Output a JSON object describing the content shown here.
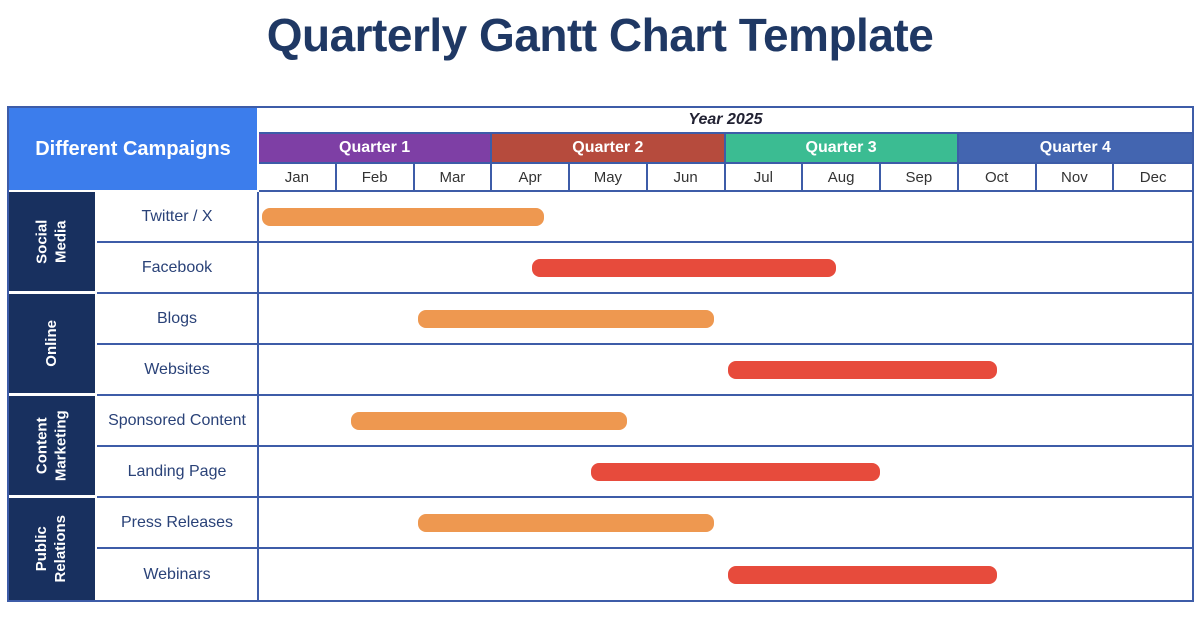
{
  "title": "Quarterly Gantt Chart Template",
  "table": {
    "campaigns_header": "Different Campaigns",
    "year_label": "Year 2025",
    "quarters": [
      {
        "label": "Quarter 1",
        "color": "#7e3fa5"
      },
      {
        "label": "Quarter 2",
        "color": "#b64b3d"
      },
      {
        "label": "Quarter 3",
        "color": "#3bbc92"
      },
      {
        "label": "Quarter 4",
        "color": "#4365b0"
      }
    ],
    "months": [
      "Jan",
      "Feb",
      "Mar",
      "Apr",
      "May",
      "Jun",
      "Jul",
      "Aug",
      "Sep",
      "Oct",
      "Nov",
      "Dec"
    ],
    "groups": [
      {
        "label": "Social Media",
        "vertical_text": "Social\nMedia"
      },
      {
        "label": "Online",
        "vertical_text": "Online"
      },
      {
        "label": "Content Marketing",
        "vertical_text": "Content\nMarketing"
      },
      {
        "label": "Public Relations",
        "vertical_text": "Public\nRelations"
      }
    ],
    "rows": [
      {
        "label": "Twitter / X",
        "group": "Social Media",
        "bar": {
          "start": 0.04,
          "end": 3.67,
          "color": "#ee9850"
        }
      },
      {
        "label": "Facebook",
        "group": "Social Media",
        "bar": {
          "start": 3.51,
          "end": 7.42,
          "color": "#e74b3c"
        }
      },
      {
        "label": "Blogs",
        "group": "Online",
        "bar": {
          "start": 2.04,
          "end": 5.85,
          "color": "#ee9850"
        }
      },
      {
        "label": "Websites",
        "group": "Online",
        "bar": {
          "start": 6.03,
          "end": 9.49,
          "color": "#e74b3c"
        }
      },
      {
        "label": "Sponsored Content",
        "group": "Content Marketing",
        "bar": {
          "start": 1.18,
          "end": 4.73,
          "color": "#ee9850"
        }
      },
      {
        "label": "Landing Page",
        "group": "Content Marketing",
        "bar": {
          "start": 4.27,
          "end": 7.99,
          "color": "#e74b3c"
        }
      },
      {
        "label": "Press Releases",
        "group": "Public Relations",
        "bar": {
          "start": 2.04,
          "end": 5.85,
          "color": "#ee9850"
        }
      },
      {
        "label": "Webinars",
        "group": "Public Relations",
        "bar": {
          "start": 6.03,
          "end": 9.49,
          "color": "#e74b3c"
        }
      }
    ]
  },
  "colors": {
    "title_navy": "#1f3864",
    "grid_line": "#3d5ca8",
    "sidebar_navy": "#18305f",
    "campaign_header_blue": "#3c7dec",
    "row_label_navy": "#2a4278",
    "month_text": "#333333",
    "year_text": "#222233",
    "bar_orange": "#ee9850",
    "bar_red": "#e74b3c"
  },
  "chart_data": {
    "type": "gantt",
    "title": "Quarterly Gantt Chart Template",
    "year": "2025",
    "axis_unit": "months (0 = start of Jan, 12 = end of Dec)",
    "time_labels": [
      "Jan",
      "Feb",
      "Mar",
      "Apr",
      "May",
      "Jun",
      "Jul",
      "Aug",
      "Sep",
      "Oct",
      "Nov",
      "Dec"
    ],
    "quarter_spans": [
      {
        "label": "Quarter 1",
        "months": [
          "Jan",
          "Feb",
          "Mar"
        ]
      },
      {
        "label": "Quarter 2",
        "months": [
          "Apr",
          "May",
          "Jun"
        ]
      },
      {
        "label": "Quarter 3",
        "months": [
          "Jul",
          "Aug",
          "Sep"
        ]
      },
      {
        "label": "Quarter 4",
        "months": [
          "Oct",
          "Nov",
          "Dec"
        ]
      }
    ],
    "tasks": [
      {
        "name": "Twitter / X",
        "group": "Social Media",
        "start": 0.0,
        "end": 3.7,
        "approx": "Jan 1 - mid Apr",
        "color": "orange"
      },
      {
        "name": "Facebook",
        "group": "Social Media",
        "start": 3.5,
        "end": 7.4,
        "approx": "mid Apr - mid Aug",
        "color": "red"
      },
      {
        "name": "Blogs",
        "group": "Online",
        "start": 2.0,
        "end": 5.9,
        "approx": "Mar 1 - late Jun",
        "color": "orange"
      },
      {
        "name": "Websites",
        "group": "Online",
        "start": 6.0,
        "end": 9.5,
        "approx": "Jul 1 - mid Oct",
        "color": "red"
      },
      {
        "name": "Sponsored Content",
        "group": "Content Marketing",
        "start": 1.2,
        "end": 4.7,
        "approx": "early Feb - late May",
        "color": "orange"
      },
      {
        "name": "Landing Page",
        "group": "Content Marketing",
        "start": 4.3,
        "end": 8.0,
        "approx": "mid May - end Aug",
        "color": "red"
      },
      {
        "name": "Press Releases",
        "group": "Public Relations",
        "start": 2.0,
        "end": 5.9,
        "approx": "Mar 1 - late Jun",
        "color": "orange"
      },
      {
        "name": "Webinars",
        "group": "Public Relations",
        "start": 6.0,
        "end": 9.5,
        "approx": "Jul 1 - mid Oct",
        "color": "red"
      }
    ],
    "legend": "none",
    "grid": true
  }
}
